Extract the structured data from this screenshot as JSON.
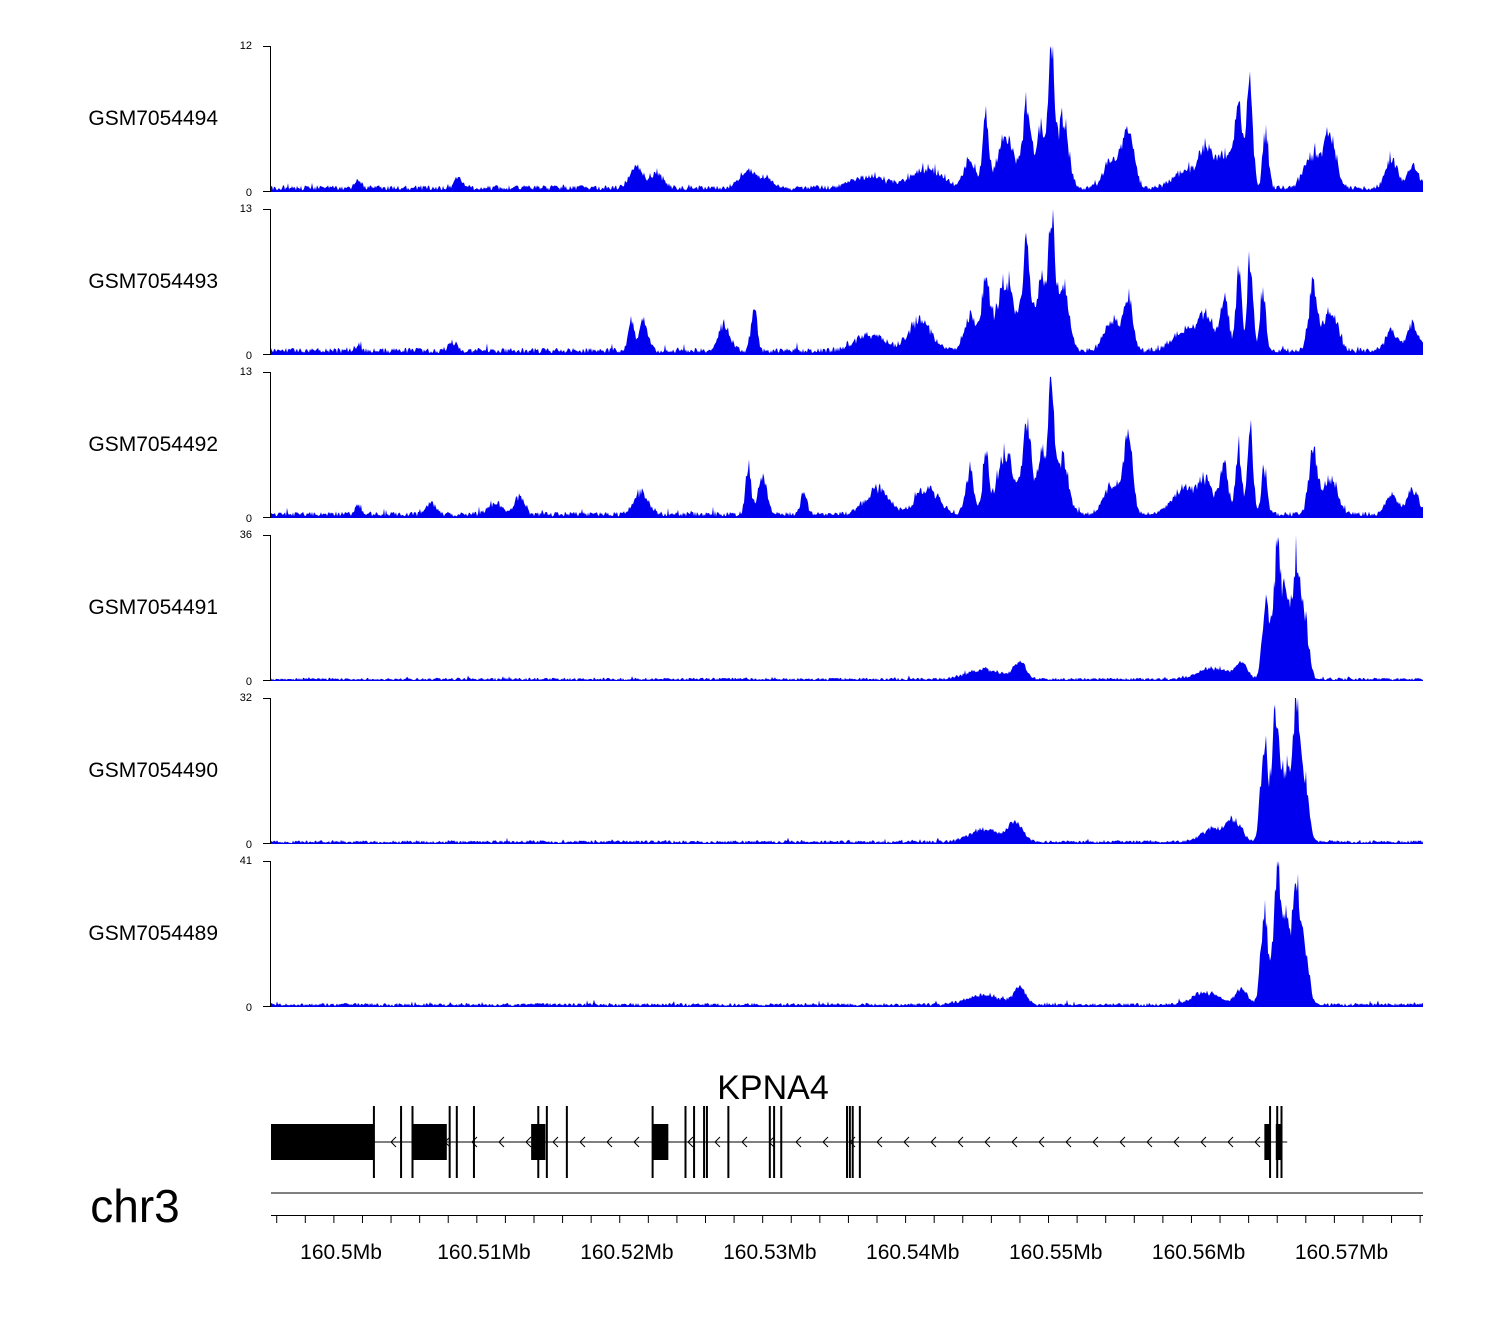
{
  "chart_data": {
    "type": "area",
    "title": "",
    "chromosome": "chr3",
    "x_range_mb": [
      160.4951,
      160.5757
    ],
    "x_unit": "Mb",
    "x_ticks": [
      160.5,
      160.51,
      160.52,
      160.53,
      160.54,
      160.55,
      160.56,
      160.57
    ],
    "x_tick_labels": [
      "160.5Mb",
      "160.51Mb",
      "160.52Mb",
      "160.53Mb",
      "160.54Mb",
      "160.55Mb",
      "160.56Mb",
      "160.57Mb"
    ],
    "fill_color": "#0000ee",
    "tracks": [
      {
        "name": "GSM7054494",
        "ymax": 12,
        "ymax_label": "12",
        "ymin_label": "0",
        "baseline": 0.35,
        "peaks": [
          {
            "x": 160.5012,
            "h": 0.8,
            "w": 0.0002
          },
          {
            "x": 160.5082,
            "h": 0.8,
            "w": 0.0003
          },
          {
            "x": 160.5207,
            "h": 1.8,
            "w": 0.0005
          },
          {
            "x": 160.5222,
            "h": 1.2,
            "w": 0.0004
          },
          {
            "x": 160.5285,
            "h": 1.5,
            "w": 0.0006
          },
          {
            "x": 160.5298,
            "h": 0.8,
            "w": 0.0004
          },
          {
            "x": 160.537,
            "h": 1.0,
            "w": 0.0012
          },
          {
            "x": 160.541,
            "h": 1.8,
            "w": 0.001
          },
          {
            "x": 160.544,
            "h": 2.6,
            "w": 0.0004
          },
          {
            "x": 160.5451,
            "h": 6.7,
            "w": 0.0002
          },
          {
            "x": 160.5465,
            "h": 4.5,
            "w": 0.0006
          },
          {
            "x": 160.548,
            "h": 7.2,
            "w": 0.0003
          },
          {
            "x": 160.549,
            "h": 5.5,
            "w": 0.0003
          },
          {
            "x": 160.5497,
            "h": 11.9,
            "w": 0.0002
          },
          {
            "x": 160.5505,
            "h": 6.0,
            "w": 0.0004
          },
          {
            "x": 160.554,
            "h": 2.5,
            "w": 0.0006
          },
          {
            "x": 160.5551,
            "h": 4.6,
            "w": 0.0004
          },
          {
            "x": 160.559,
            "h": 1.5,
            "w": 0.0008
          },
          {
            "x": 160.5605,
            "h": 3.5,
            "w": 0.0005
          },
          {
            "x": 160.5618,
            "h": 3.0,
            "w": 0.0005
          },
          {
            "x": 160.5628,
            "h": 6.5,
            "w": 0.0003
          },
          {
            "x": 160.5636,
            "h": 9.8,
            "w": 0.0002
          },
          {
            "x": 160.5647,
            "h": 5.0,
            "w": 0.0002
          },
          {
            "x": 160.568,
            "h": 3.0,
            "w": 0.0006
          },
          {
            "x": 160.5692,
            "h": 4.5,
            "w": 0.0004
          },
          {
            "x": 160.5735,
            "h": 2.5,
            "w": 0.0004
          },
          {
            "x": 160.575,
            "h": 2.0,
            "w": 0.0004
          }
        ]
      },
      {
        "name": "GSM7054493",
        "ymax": 13,
        "ymax_label": "13",
        "ymin_label": "0",
        "baseline": 0.4,
        "peaks": [
          {
            "x": 160.5012,
            "h": 0.6,
            "w": 0.0002
          },
          {
            "x": 160.5078,
            "h": 0.8,
            "w": 0.0003
          },
          {
            "x": 160.5203,
            "h": 3.0,
            "w": 0.0002
          },
          {
            "x": 160.5212,
            "h": 3.0,
            "w": 0.0003
          },
          {
            "x": 160.5268,
            "h": 2.5,
            "w": 0.0004
          },
          {
            "x": 160.5289,
            "h": 4.2,
            "w": 0.0002
          },
          {
            "x": 160.537,
            "h": 1.5,
            "w": 0.001
          },
          {
            "x": 160.5405,
            "h": 2.8,
            "w": 0.0008
          },
          {
            "x": 160.544,
            "h": 3.5,
            "w": 0.0004
          },
          {
            "x": 160.5451,
            "h": 6.0,
            "w": 0.0003
          },
          {
            "x": 160.5465,
            "h": 7.0,
            "w": 0.0006
          },
          {
            "x": 160.548,
            "h": 9.5,
            "w": 0.0003
          },
          {
            "x": 160.549,
            "h": 7.0,
            "w": 0.0003
          },
          {
            "x": 160.5497,
            "h": 12.8,
            "w": 0.0002
          },
          {
            "x": 160.5505,
            "h": 6.5,
            "w": 0.0004
          },
          {
            "x": 160.554,
            "h": 2.8,
            "w": 0.0006
          },
          {
            "x": 160.5551,
            "h": 5.0,
            "w": 0.0003
          },
          {
            "x": 160.559,
            "h": 2.0,
            "w": 0.0008
          },
          {
            "x": 160.5605,
            "h": 3.5,
            "w": 0.0005
          },
          {
            "x": 160.5618,
            "h": 5.0,
            "w": 0.0003
          },
          {
            "x": 160.5628,
            "h": 7.5,
            "w": 0.0002
          },
          {
            "x": 160.5636,
            "h": 9.0,
            "w": 0.0002
          },
          {
            "x": 160.5645,
            "h": 6.0,
            "w": 0.0002
          },
          {
            "x": 160.568,
            "h": 6.0,
            "w": 0.0003
          },
          {
            "x": 160.5692,
            "h": 4.0,
            "w": 0.0005
          },
          {
            "x": 160.5735,
            "h": 2.0,
            "w": 0.0004
          },
          {
            "x": 160.575,
            "h": 2.5,
            "w": 0.0004
          }
        ]
      },
      {
        "name": "GSM7054492",
        "ymax": 13,
        "ymax_label": "13",
        "ymin_label": "0",
        "baseline": 0.35,
        "peaks": [
          {
            "x": 160.5012,
            "h": 1.0,
            "w": 0.0002
          },
          {
            "x": 160.5063,
            "h": 1.3,
            "w": 0.0003
          },
          {
            "x": 160.5108,
            "h": 1.0,
            "w": 0.0005
          },
          {
            "x": 160.5125,
            "h": 1.8,
            "w": 0.0003
          },
          {
            "x": 160.521,
            "h": 2.2,
            "w": 0.0005
          },
          {
            "x": 160.5285,
            "h": 4.5,
            "w": 0.0002
          },
          {
            "x": 160.5295,
            "h": 3.5,
            "w": 0.0003
          },
          {
            "x": 160.5324,
            "h": 2.5,
            "w": 0.0002
          },
          {
            "x": 160.5375,
            "h": 2.5,
            "w": 0.0008
          },
          {
            "x": 160.541,
            "h": 2.5,
            "w": 0.0008
          },
          {
            "x": 160.544,
            "h": 4.0,
            "w": 0.0003
          },
          {
            "x": 160.5451,
            "h": 6.0,
            "w": 0.0002
          },
          {
            "x": 160.5465,
            "h": 6.0,
            "w": 0.0006
          },
          {
            "x": 160.548,
            "h": 8.5,
            "w": 0.0003
          },
          {
            "x": 160.549,
            "h": 6.0,
            "w": 0.0003
          },
          {
            "x": 160.5497,
            "h": 12.8,
            "w": 0.0002
          },
          {
            "x": 160.5505,
            "h": 5.5,
            "w": 0.0004
          },
          {
            "x": 160.554,
            "h": 3.0,
            "w": 0.0006
          },
          {
            "x": 160.5551,
            "h": 7.3,
            "w": 0.0003
          },
          {
            "x": 160.559,
            "h": 2.5,
            "w": 0.0008
          },
          {
            "x": 160.5605,
            "h": 3.0,
            "w": 0.0005
          },
          {
            "x": 160.5618,
            "h": 4.5,
            "w": 0.0003
          },
          {
            "x": 160.5628,
            "h": 6.5,
            "w": 0.0002
          },
          {
            "x": 160.5636,
            "h": 8.2,
            "w": 0.0002
          },
          {
            "x": 160.5646,
            "h": 4.5,
            "w": 0.0002
          },
          {
            "x": 160.568,
            "h": 5.7,
            "w": 0.0003
          },
          {
            "x": 160.5692,
            "h": 3.5,
            "w": 0.0005
          },
          {
            "x": 160.5735,
            "h": 2.0,
            "w": 0.0004
          },
          {
            "x": 160.575,
            "h": 2.3,
            "w": 0.0004
          }
        ]
      },
      {
        "name": "GSM7054491",
        "ymax": 36,
        "ymax_label": "36",
        "ymin_label": "0",
        "baseline": 0.5,
        "peaks": [
          {
            "x": 160.545,
            "h": 2.5,
            "w": 0.0012
          },
          {
            "x": 160.5475,
            "h": 4.5,
            "w": 0.0004
          },
          {
            "x": 160.561,
            "h": 3.0,
            "w": 0.001
          },
          {
            "x": 160.563,
            "h": 4.0,
            "w": 0.0004
          },
          {
            "x": 160.5647,
            "h": 21.0,
            "w": 0.00025
          },
          {
            "x": 160.5655,
            "h": 35.0,
            "w": 0.00025
          },
          {
            "x": 160.5661,
            "h": 20.0,
            "w": 0.00025
          },
          {
            "x": 160.5668,
            "h": 31.0,
            "w": 0.00025
          },
          {
            "x": 160.5674,
            "h": 16.0,
            "w": 0.0003
          }
        ]
      },
      {
        "name": "GSM7054490",
        "ymax": 32,
        "ymax_label": "32",
        "ymin_label": "0",
        "baseline": 0.5,
        "peaks": [
          {
            "x": 160.545,
            "h": 3.0,
            "w": 0.001
          },
          {
            "x": 160.5472,
            "h": 4.5,
            "w": 0.0005
          },
          {
            "x": 160.561,
            "h": 3.0,
            "w": 0.0008
          },
          {
            "x": 160.5625,
            "h": 5.0,
            "w": 0.0005
          },
          {
            "x": 160.5646,
            "h": 24.0,
            "w": 0.00025
          },
          {
            "x": 160.5654,
            "h": 30.0,
            "w": 0.00025
          },
          {
            "x": 160.5661,
            "h": 17.0,
            "w": 0.00025
          },
          {
            "x": 160.5668,
            "h": 32.0,
            "w": 0.00025
          },
          {
            "x": 160.5674,
            "h": 15.0,
            "w": 0.0003
          }
        ]
      },
      {
        "name": "GSM7054489",
        "ymax": 41,
        "ymax_label": "41",
        "ymin_label": "0",
        "baseline": 0.7,
        "peaks": [
          {
            "x": 160.545,
            "h": 3.0,
            "w": 0.0012
          },
          {
            "x": 160.5475,
            "h": 5.0,
            "w": 0.0004
          },
          {
            "x": 160.5605,
            "h": 3.5,
            "w": 0.001
          },
          {
            "x": 160.563,
            "h": 4.5,
            "w": 0.0004
          },
          {
            "x": 160.5646,
            "h": 28.0,
            "w": 0.00025
          },
          {
            "x": 160.5655,
            "h": 40.0,
            "w": 0.00025
          },
          {
            "x": 160.5661,
            "h": 24.0,
            "w": 0.00025
          },
          {
            "x": 160.5668,
            "h": 36.0,
            "w": 0.00025
          },
          {
            "x": 160.5674,
            "h": 18.0,
            "w": 0.0003
          }
        ]
      }
    ],
    "gene": {
      "name": "KPNA4",
      "strand": "-",
      "start_mb": 160.4951,
      "end_mb": 160.5662,
      "thick_exons_mb": [
        [
          160.4951,
          160.5023
        ],
        [
          160.505,
          160.5074
        ],
        [
          160.5133,
          160.5143
        ],
        [
          160.5218,
          160.5229
        ],
        [
          160.5646,
          160.565
        ],
        [
          160.5654,
          160.5658
        ]
      ],
      "thin_exons_mb": [
        160.5023,
        160.5042,
        160.505,
        160.5076,
        160.5081,
        160.5093,
        160.5138,
        160.5144,
        160.5158,
        160.5218,
        160.5241,
        160.5247,
        160.5254,
        160.5256,
        160.5271,
        160.53,
        160.5303,
        160.5308,
        160.5354,
        160.5356,
        160.5358,
        160.5363,
        160.565,
        160.5655,
        160.5658
      ]
    }
  }
}
